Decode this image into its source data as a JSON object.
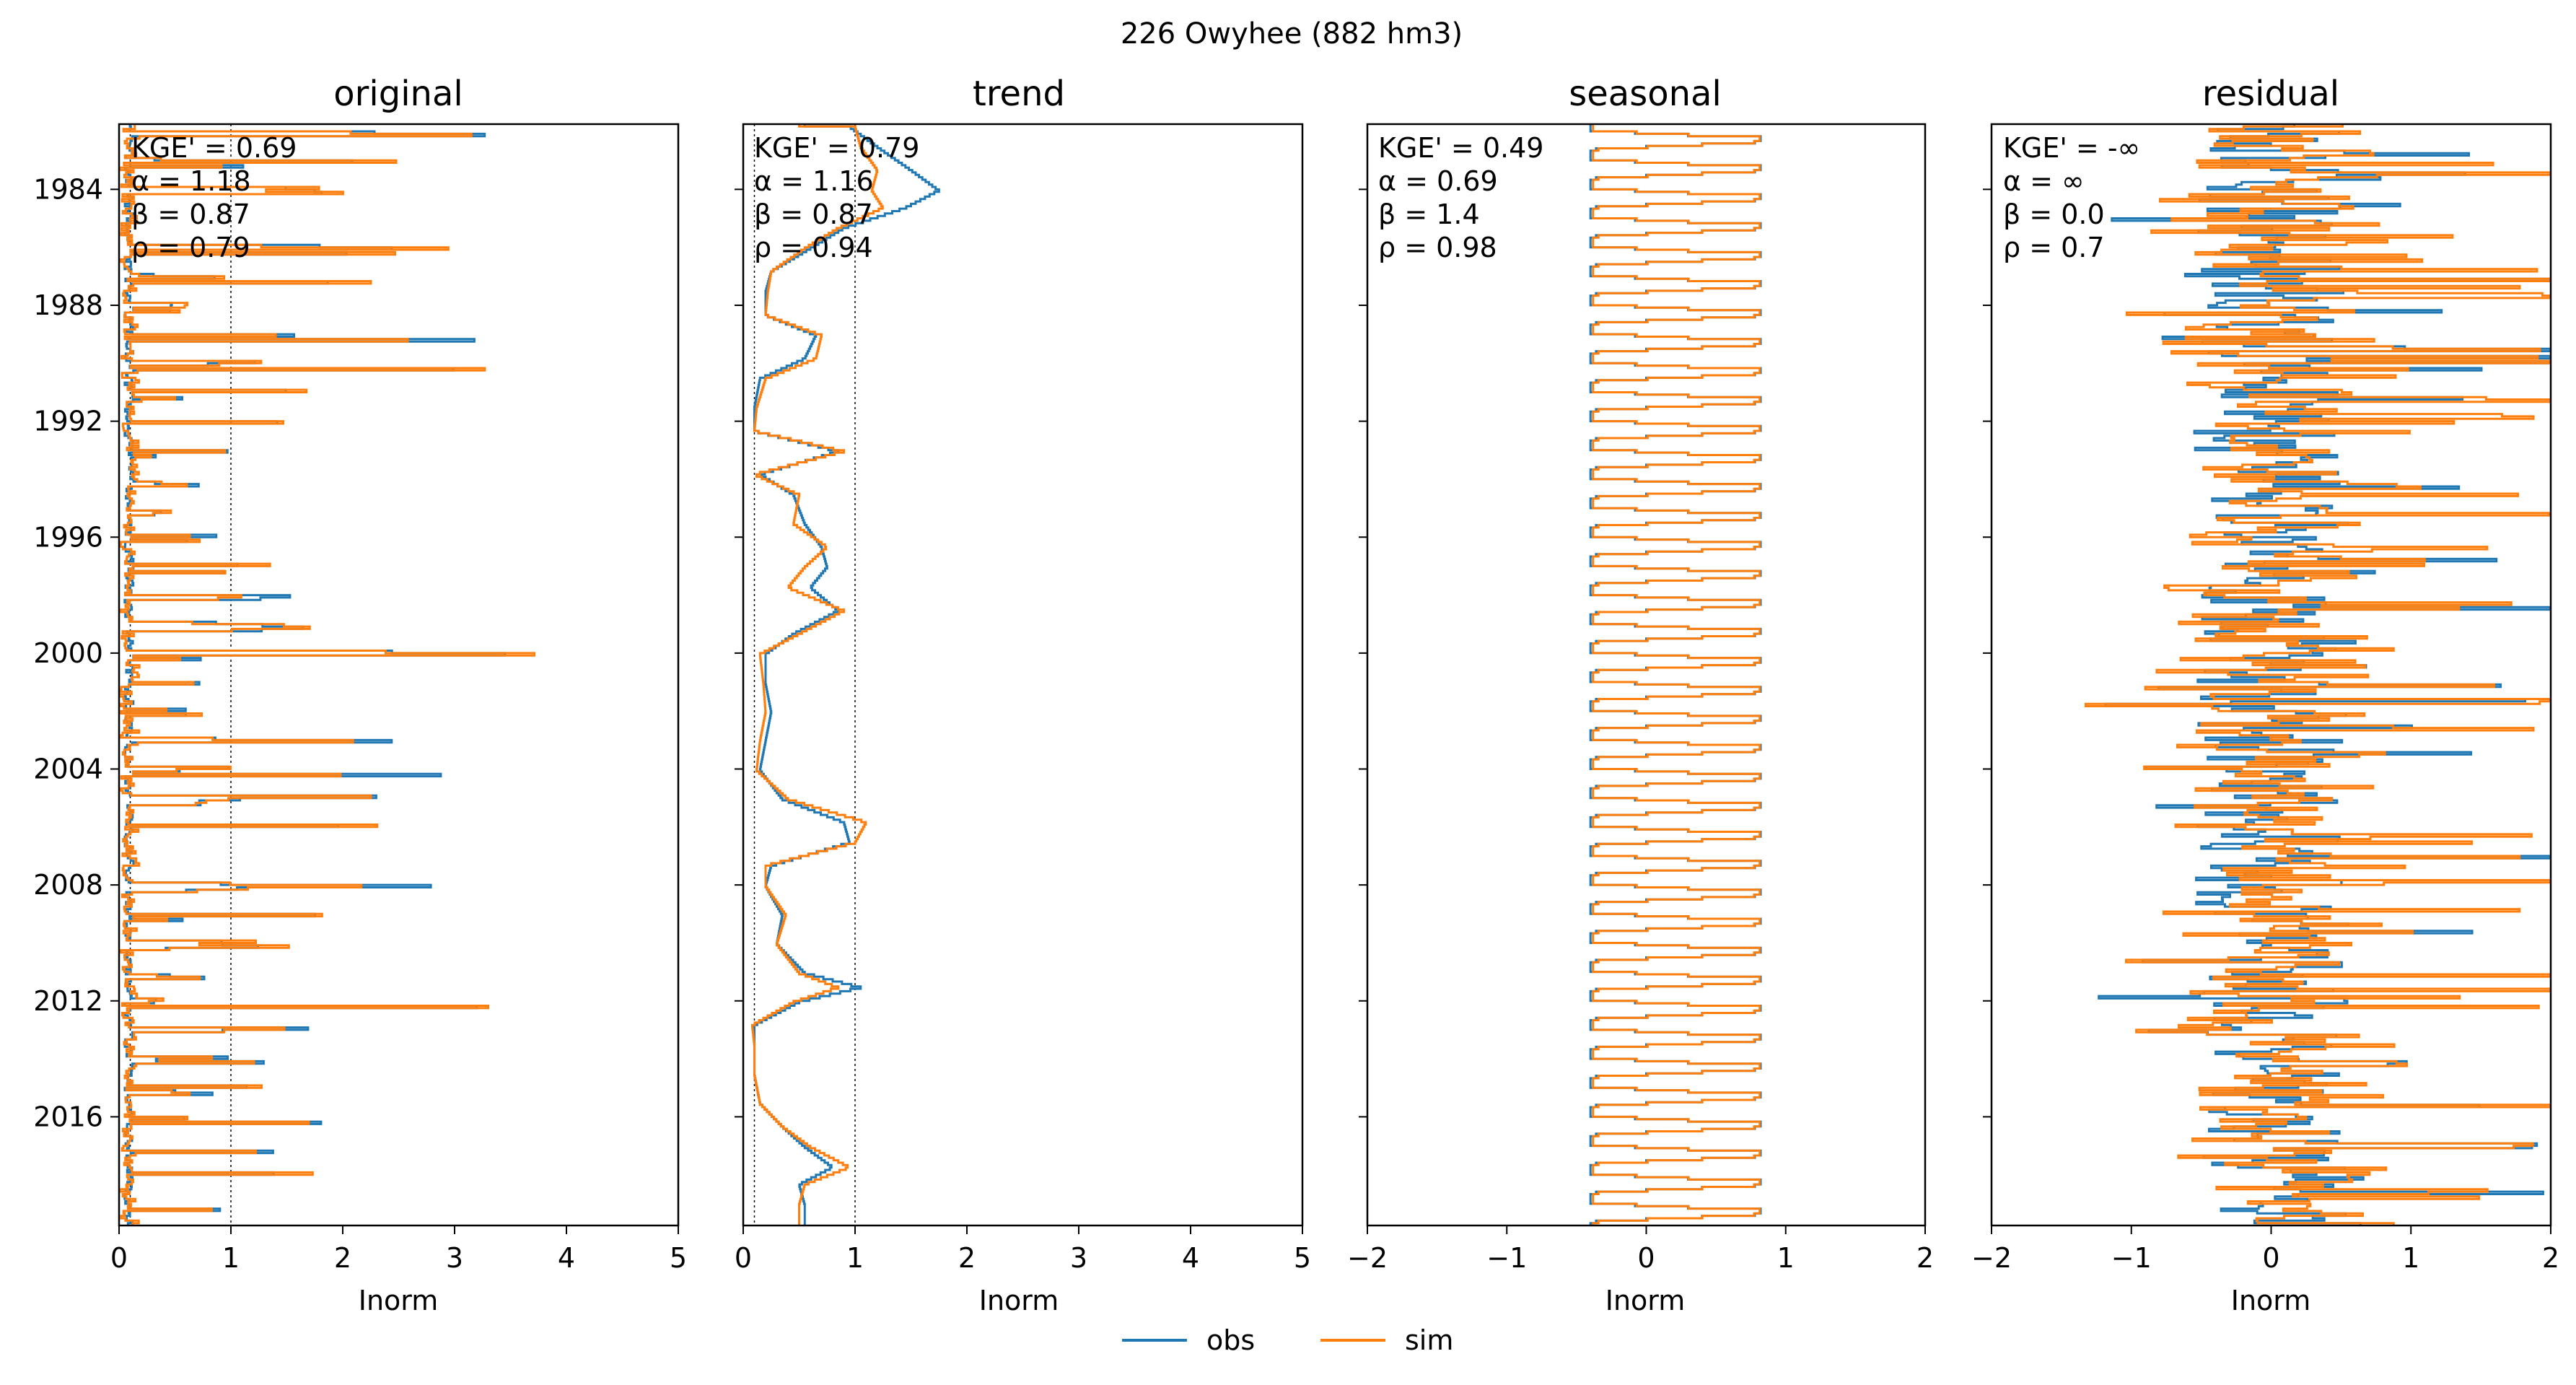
{
  "chart_data": {
    "type": "line",
    "suptitle": "226  Owyhee (882 hm3)",
    "series_names": [
      "obs",
      "sim"
    ],
    "series_colors": {
      "obs": "#1f77b4",
      "sim": "#ff7f0e"
    },
    "legend": {
      "placement": "bottom-center",
      "entries": [
        "obs",
        "sim"
      ]
    },
    "orientation": "horizontal-values-vertical-time",
    "y_axis": {
      "type": "date",
      "range": [
        "1981-10-01",
        "2019-10-01"
      ],
      "ticks": [
        "1984",
        "1988",
        "1992",
        "1996",
        "2000",
        "2004",
        "2008",
        "2012",
        "2016"
      ],
      "inverted": true
    },
    "panels": [
      {
        "title": "original",
        "xlabel": "Inorm",
        "xlim": [
          0,
          5
        ],
        "xticks": [
          "0",
          "1",
          "2",
          "3",
          "4",
          "5"
        ],
        "reference_lines": [
          0.1,
          1.0
        ],
        "show_yticklabels": true,
        "stats": [
          "KGE' = 0.69",
          "α = 1.18",
          "β = 0.87",
          "ρ = 0.79"
        ],
        "kind": "storage-series",
        "peak_scale": 1.0
      },
      {
        "title": "trend",
        "xlabel": "Inorm",
        "xlim": [
          0,
          5
        ],
        "xticks": [
          "0",
          "1",
          "2",
          "3",
          "4",
          "5"
        ],
        "reference_lines": [
          0.1,
          1.0
        ],
        "show_yticklabels": false,
        "stats": [
          "KGE' = 0.79",
          "α = 1.16",
          "β = 0.87",
          "ρ = 0.94"
        ],
        "kind": "trend",
        "trend_points": [
          [
            1981.8,
            0.95,
            1.0
          ],
          [
            1982.5,
            1.2,
            1.05
          ],
          [
            1983.3,
            1.5,
            1.2
          ],
          [
            1984.0,
            1.75,
            1.15
          ],
          [
            1984.6,
            1.45,
            1.25
          ],
          [
            1985.3,
            0.9,
            0.85
          ],
          [
            1986.0,
            0.6,
            0.55
          ],
          [
            1986.8,
            0.25,
            0.25
          ],
          [
            1987.5,
            0.2,
            0.22
          ],
          [
            1988.3,
            0.2,
            0.2
          ],
          [
            1989.0,
            0.65,
            0.7
          ],
          [
            1989.8,
            0.55,
            0.65
          ],
          [
            1990.5,
            0.15,
            0.2
          ],
          [
            1991.5,
            0.1,
            0.12
          ],
          [
            1992.3,
            0.1,
            0.1
          ],
          [
            1993.0,
            0.85,
            0.9
          ],
          [
            1993.8,
            0.15,
            0.1
          ],
          [
            1994.5,
            0.45,
            0.5
          ],
          [
            1995.5,
            0.55,
            0.45
          ],
          [
            1996.3,
            0.7,
            0.75
          ],
          [
            1997.0,
            0.75,
            0.55
          ],
          [
            1997.7,
            0.6,
            0.4
          ],
          [
            1998.5,
            0.85,
            0.9
          ],
          [
            1999.3,
            0.45,
            0.5
          ],
          [
            2000.0,
            0.2,
            0.15
          ],
          [
            2001.0,
            0.2,
            0.18
          ],
          [
            2002.0,
            0.25,
            0.2
          ],
          [
            2003.0,
            0.2,
            0.15
          ],
          [
            2004.0,
            0.15,
            0.12
          ],
          [
            2005.0,
            0.35,
            0.4
          ],
          [
            2005.8,
            0.9,
            1.1
          ],
          [
            2006.5,
            0.95,
            1.0
          ],
          [
            2007.3,
            0.25,
            0.2
          ],
          [
            2008.0,
            0.2,
            0.2
          ],
          [
            2009.0,
            0.35,
            0.38
          ],
          [
            2010.0,
            0.3,
            0.3
          ],
          [
            2011.0,
            0.55,
            0.5
          ],
          [
            2011.5,
            1.05,
            0.85
          ],
          [
            2012.0,
            0.5,
            0.45
          ],
          [
            2012.8,
            0.1,
            0.08
          ],
          [
            2013.5,
            0.1,
            0.1
          ],
          [
            2014.5,
            0.1,
            0.1
          ],
          [
            2015.5,
            0.15,
            0.15
          ],
          [
            2016.3,
            0.35,
            0.35
          ],
          [
            2017.0,
            0.55,
            0.6
          ],
          [
            2017.7,
            0.8,
            0.95
          ],
          [
            2018.3,
            0.5,
            0.55
          ],
          [
            2019.0,
            0.55,
            0.5
          ],
          [
            2019.6,
            0.55,
            0.5
          ]
        ]
      },
      {
        "title": "seasonal",
        "xlabel": "Inorm",
        "xlim": [
          -2,
          2
        ],
        "xticks": [
          "−2",
          "−1",
          "0",
          "1",
          "2"
        ],
        "reference_lines": [],
        "show_yticklabels": false,
        "stats": [
          "KGE' = 0.49",
          "α = 0.69",
          "β = 1.4",
          "ρ = 0.98"
        ],
        "kind": "seasonal",
        "seasonal_min": -0.4,
        "seasonal_max": 0.82
      },
      {
        "title": "residual",
        "xlabel": "Inorm",
        "xlim": [
          -2,
          2
        ],
        "xticks": [
          "−2",
          "−1",
          "0",
          "1",
          "2"
        ],
        "reference_lines": [],
        "show_yticklabels": false,
        "stats": [
          "KGE' = -∞",
          "α = ∞",
          "β = 0.0",
          "ρ = 0.7"
        ],
        "kind": "residual"
      }
    ]
  }
}
